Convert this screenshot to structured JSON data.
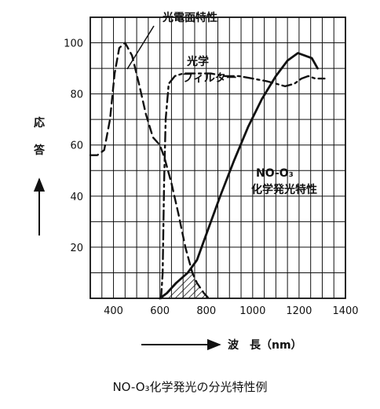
{
  "chart_data": {
    "type": "line",
    "title": "",
    "caption": "NO-O₃化学発光の分光特性例",
    "xlabel": "波　長（nm）",
    "ylabel": [
      "応",
      "答"
    ],
    "xlim": [
      300,
      1400
    ],
    "ylim": [
      0,
      110
    ],
    "grid": true,
    "x_ticks": [
      400,
      600,
      800,
      1000,
      1200,
      1400
    ],
    "y_ticks": [
      20,
      40,
      60,
      80,
      100
    ],
    "series": [
      {
        "name": "光電面特性",
        "style": "dashed",
        "points": [
          [
            300,
            56
          ],
          [
            330,
            56
          ],
          [
            360,
            58
          ],
          [
            385,
            70
          ],
          [
            405,
            88
          ],
          [
            425,
            98
          ],
          [
            450,
            100
          ],
          [
            480,
            95
          ],
          [
            510,
            84
          ],
          [
            540,
            72
          ],
          [
            570,
            63
          ],
          [
            600,
            60
          ],
          [
            620,
            55
          ],
          [
            650,
            45
          ],
          [
            680,
            33
          ],
          [
            710,
            20
          ],
          [
            740,
            10
          ],
          [
            760,
            6
          ],
          [
            790,
            2
          ],
          [
            810,
            0
          ]
        ]
      },
      {
        "name": "光学フィルター",
        "style": "dash-dot",
        "points": [
          [
            605,
            0
          ],
          [
            612,
            10
          ],
          [
            618,
            45
          ],
          [
            625,
            70
          ],
          [
            638,
            84
          ],
          [
            665,
            87
          ],
          [
            700,
            88
          ],
          [
            760,
            88
          ],
          [
            820,
            88
          ],
          [
            880,
            87
          ],
          [
            940,
            87
          ],
          [
            1000,
            86
          ],
          [
            1060,
            85
          ],
          [
            1100,
            84
          ],
          [
            1140,
            83
          ],
          [
            1180,
            84
          ],
          [
            1210,
            86
          ],
          [
            1240,
            87
          ],
          [
            1270,
            86
          ],
          [
            1310,
            86
          ]
        ]
      },
      {
        "name": "NO-O₃化学発光特性",
        "style": "solid",
        "points": [
          [
            600,
            0
          ],
          [
            630,
            2
          ],
          [
            670,
            6
          ],
          [
            720,
            10
          ],
          [
            760,
            15
          ],
          [
            800,
            25
          ],
          [
            860,
            40
          ],
          [
            920,
            54
          ],
          [
            980,
            67
          ],
          [
            1040,
            78
          ],
          [
            1100,
            87
          ],
          [
            1150,
            93
          ],
          [
            1195,
            96
          ],
          [
            1225,
            95
          ],
          [
            1255,
            94
          ],
          [
            1280,
            90
          ]
        ]
      }
    ],
    "hatched_region": {
      "description": "overlap of photocathode and NO-O3 emission",
      "x_range": [
        600,
        810
      ]
    },
    "annotations": {
      "photocathode": "光電面特性",
      "filter_line1": "光学",
      "filter_line2": "フィルター",
      "emission_line1": "NO-O₃",
      "emission_line2": "化学発光特性"
    }
  }
}
